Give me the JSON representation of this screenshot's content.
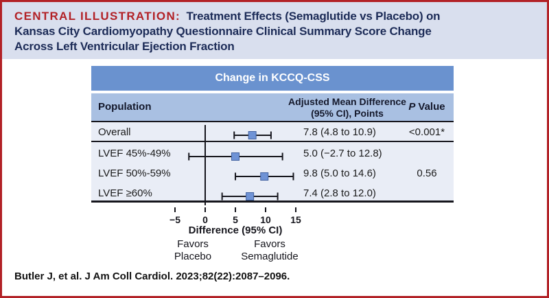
{
  "header": {
    "label": "CENTRAL ILLUSTRATION:",
    "title": " Treatment Effects (Semaglutide vs Placebo) on\nKansas City Cardiomyopathy Questionnaire Clinical Summary Score Change\nAcross Left Ventricular Ejection Fraction"
  },
  "table": {
    "title": "Change in KCCQ-CSS",
    "columns": {
      "population": "Population",
      "estimate_line1": "Adjusted Mean Difference",
      "estimate_line2": "(95% CI), Points",
      "p_italic": "P",
      "p_rest": "Value"
    }
  },
  "chart_data": {
    "type": "forest",
    "title": "Change in KCCQ-CSS",
    "xlabel": "Difference (95% CI)",
    "x_ticks": [
      -5,
      0,
      5,
      10,
      15
    ],
    "x_tick_labels": [
      "−5",
      "0",
      "5",
      "10",
      "15"
    ],
    "xlim": [
      -7.5,
      17.5
    ],
    "reference_line": 0,
    "favors_left": "Favors\nPlacebo",
    "favors_right": "Favors\nSemaglutide",
    "rows": [
      {
        "label": "Overall",
        "estimate": 7.8,
        "ci_low": 4.8,
        "ci_high": 10.9,
        "estimate_text": "7.8 (4.8 to 10.9)",
        "p_value": "<0.001*"
      },
      {
        "label": "LVEF 45%-49%",
        "estimate": 5.0,
        "ci_low": -2.7,
        "ci_high": 12.8,
        "estimate_text": "5.0 (−2.7 to 12.8)",
        "p_value": ""
      },
      {
        "label": "LVEF 50%-59%",
        "estimate": 9.8,
        "ci_low": 5.0,
        "ci_high": 14.6,
        "estimate_text": "9.8 (5.0 to 14.6)",
        "p_value": "0.56"
      },
      {
        "label": "LVEF ≥60%",
        "estimate": 7.4,
        "ci_low": 2.8,
        "ci_high": 12.0,
        "estimate_text": "7.4 (2.8 to 12.0)",
        "p_value": ""
      }
    ],
    "marker_color": "#6f93d6",
    "marker_border_color": "#41619f",
    "line_color": "#15151c"
  },
  "footer": {
    "citation": "Butler J, et al. J Am Coll Cardiol. 2023;82(22):2087–2096."
  },
  "colors": {
    "accent_red": "#b22126",
    "navy_text": "#1c2b57",
    "title_band_bg": "#d9dfee",
    "table_header_bg": "#6a92cf",
    "column_header_bg": "#a9c0e2",
    "row_bg": "#e9edf6"
  }
}
